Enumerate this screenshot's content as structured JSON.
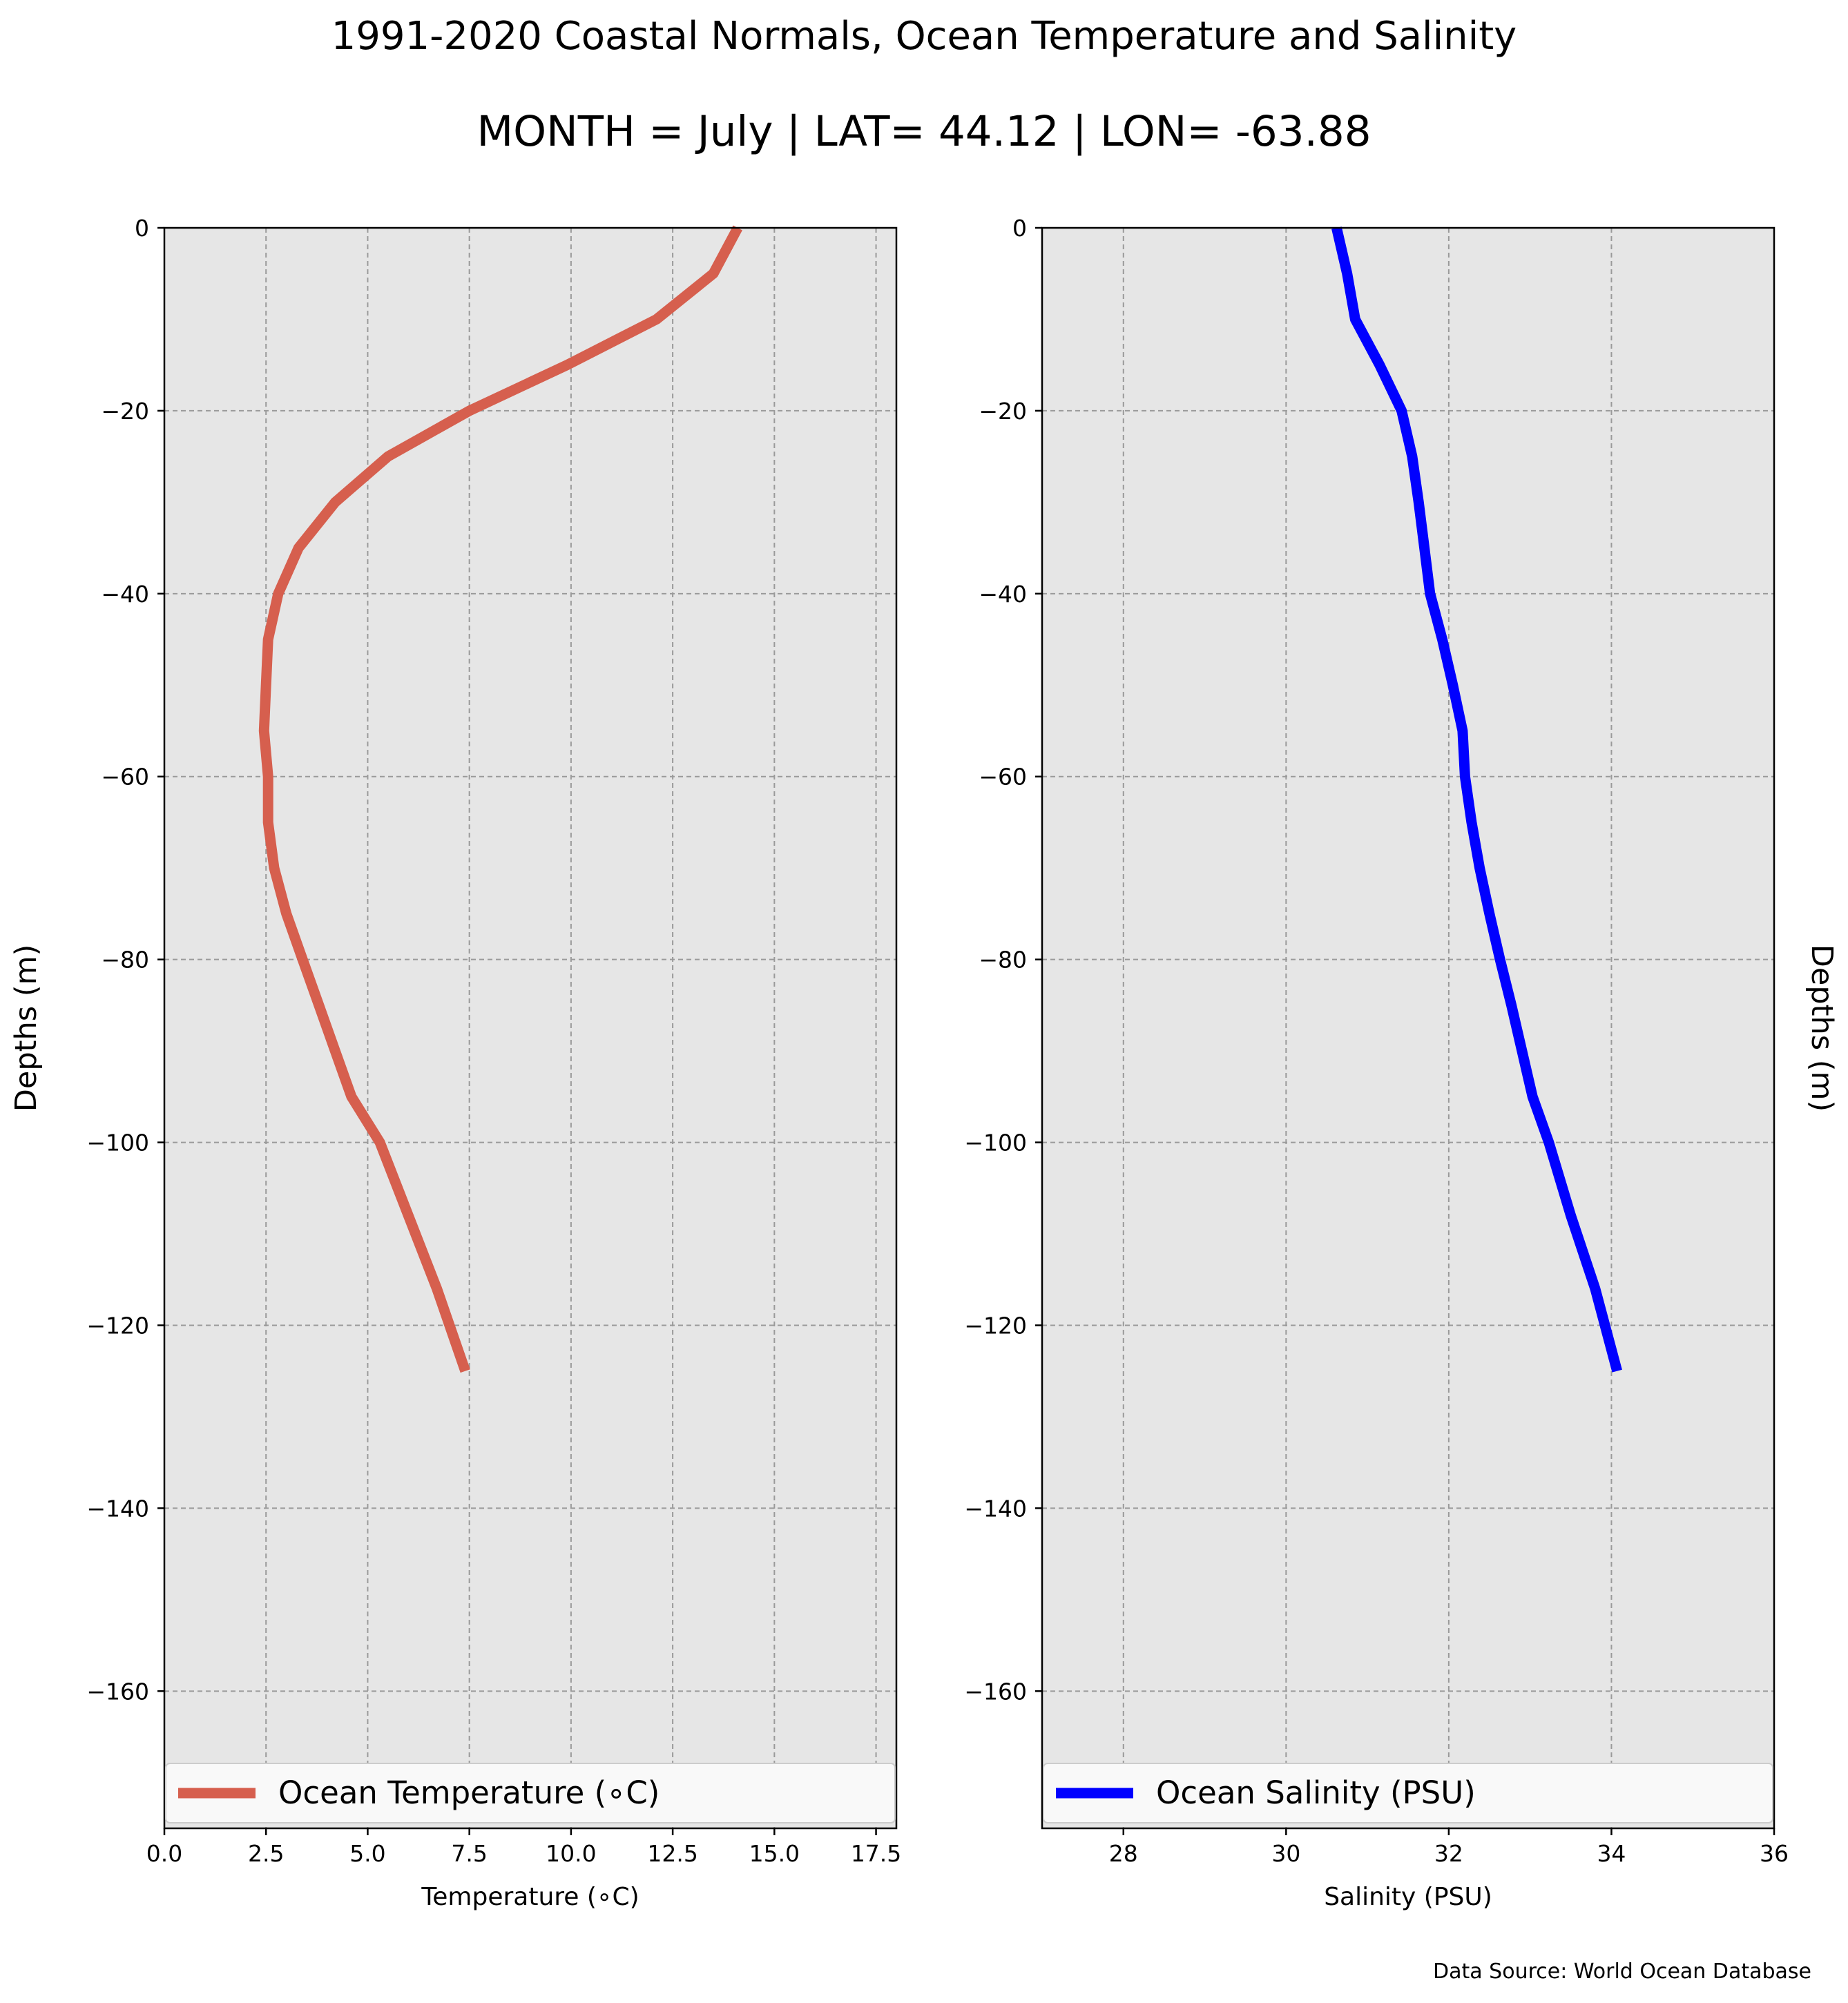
{
  "title": "1991-2020 Coastal Normals, Ocean Temperature and Salinity",
  "subtitle": "MONTH = July | LAT= 44.12 | LON= -63.88",
  "source_note": "Data Source: World Ocean Database",
  "chart_data": [
    {
      "type": "line",
      "xlabel": "Temperature (∘C)",
      "ylabel": "Depths (m)",
      "xlim": [
        0,
        18
      ],
      "ylim": [
        -175,
        0
      ],
      "xticks": [
        0.0,
        2.5,
        5.0,
        7.5,
        10.0,
        12.5,
        15.0,
        17.5
      ],
      "xtick_labels": [
        "0.0",
        "2.5",
        "5.0",
        "7.5",
        "10.0",
        "12.5",
        "15.0",
        "17.5"
      ],
      "yticks": [
        0,
        -20,
        -40,
        -60,
        -80,
        -100,
        -120,
        -140,
        -160
      ],
      "ytick_labels": [
        "0",
        "−20",
        "−40",
        "−60",
        "−80",
        "−100",
        "−120",
        "−140",
        "−160"
      ],
      "grid": true,
      "legend_position": "bottom",
      "series": [
        {
          "name": "Ocean Temperature (∘C)",
          "color": "#d65f4e",
          "x": [
            14.1,
            13.5,
            12.1,
            9.9,
            7.5,
            5.5,
            4.2,
            3.3,
            2.8,
            2.55,
            2.5,
            2.45,
            2.55,
            2.55,
            2.7,
            3.0,
            3.4,
            3.8,
            4.2,
            4.6,
            5.3,
            6.0,
            6.7,
            7.4
          ],
          "y": [
            0,
            -5,
            -10,
            -15,
            -20,
            -25,
            -30,
            -35,
            -40,
            -45,
            -50,
            -55,
            -60,
            -65,
            -70,
            -75,
            -80,
            -85,
            -90,
            -95,
            -100,
            -108,
            -116,
            -125
          ]
        }
      ]
    },
    {
      "type": "line",
      "xlabel": "Salinity (PSU)",
      "ylabel": "Depths (m)",
      "xlim": [
        27,
        36
      ],
      "ylim": [
        -175,
        0
      ],
      "xticks": [
        28,
        30,
        32,
        34,
        36
      ],
      "xtick_labels": [
        "28",
        "30",
        "32",
        "34",
        "36"
      ],
      "yticks": [
        0,
        -20,
        -40,
        -60,
        -80,
        -100,
        -120,
        -140,
        -160
      ],
      "ytick_labels": [
        "0",
        "−20",
        "−40",
        "−60",
        "−80",
        "−100",
        "−120",
        "−140",
        "−160"
      ],
      "grid": true,
      "legend_position": "bottom",
      "series": [
        {
          "name": "Ocean Salinity (PSU)",
          "color": "#0000ff",
          "x": [
            30.62,
            30.75,
            30.85,
            31.15,
            31.42,
            31.55,
            31.63,
            31.7,
            31.77,
            31.92,
            32.05,
            32.17,
            32.2,
            32.28,
            32.38,
            32.5,
            32.63,
            32.77,
            32.9,
            33.03,
            33.23,
            33.5,
            33.8,
            34.07
          ],
          "y": [
            0,
            -5,
            -10,
            -15,
            -20,
            -25,
            -30,
            -35,
            -40,
            -45,
            -50,
            -55,
            -60,
            -65,
            -70,
            -75,
            -80,
            -85,
            -90,
            -95,
            -100,
            -108,
            -116,
            -125
          ]
        }
      ]
    }
  ]
}
